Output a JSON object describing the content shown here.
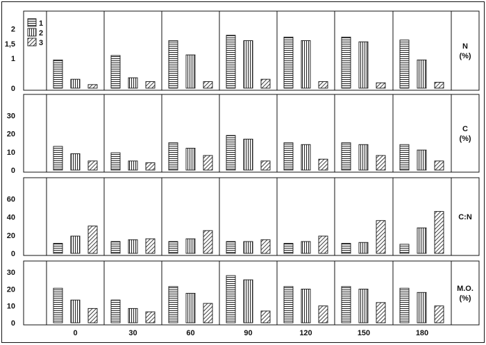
{
  "chart_data": {
    "type": "bar",
    "categories": [
      "0",
      "30",
      "60",
      "90",
      "120",
      "150",
      "180"
    ],
    "legend": [
      "1",
      "2",
      "3"
    ],
    "legend_placement": "top-left",
    "grid": false,
    "colors": {
      "ink": "#111111",
      "background": "#ffffff"
    },
    "patterns": [
      "horizontal-lines",
      "vertical-lines",
      "diagonal-lines"
    ],
    "panels": [
      {
        "label_lines": [
          "N",
          "(%)"
        ],
        "ylim": [
          0,
          2.5
        ],
        "yticks": [
          "0",
          "1",
          "1,5",
          "2"
        ],
        "ytick_values": [
          0,
          1,
          1.5,
          2
        ],
        "series": [
          {
            "name": "1",
            "values": [
              0.95,
              1.1,
              1.6,
              1.78,
              1.72,
              1.72,
              1.62
            ]
          },
          {
            "name": "2",
            "values": [
              0.3,
              0.35,
              1.12,
              1.6,
              1.6,
              1.56,
              0.95
            ]
          },
          {
            "name": "3",
            "values": [
              0.12,
              0.22,
              0.22,
              0.3,
              0.22,
              0.18,
              0.2
            ]
          }
        ]
      },
      {
        "label_lines": [
          "C",
          "(%)"
        ],
        "ylim": [
          0,
          40
        ],
        "yticks": [
          "0",
          "10",
          "20",
          "30"
        ],
        "ytick_values": [
          0,
          10,
          20,
          30
        ],
        "series": [
          {
            "name": "1",
            "values": [
              13,
              9.5,
              15,
              19,
              15,
              15,
              14
            ]
          },
          {
            "name": "2",
            "values": [
              9,
              5,
              12,
              17,
              14,
              14,
              11
            ]
          },
          {
            "name": "3",
            "values": [
              5,
              4,
              8,
              5,
              6,
              8,
              5
            ]
          }
        ]
      },
      {
        "label_lines": [
          "C:N"
        ],
        "ylim": [
          0,
          80
        ],
        "yticks": [
          "0",
          "20",
          "40",
          "60"
        ],
        "ytick_values": [
          0,
          20,
          40,
          60
        ],
        "series": [
          {
            "name": "1",
            "values": [
              11,
              13,
              13,
              13,
              11,
              11,
              10
            ]
          },
          {
            "name": "2",
            "values": [
              19,
              15,
              16,
              13,
              13,
              12,
              28
            ]
          },
          {
            "name": "3",
            "values": [
              30,
              16,
              25,
              15,
              19,
              36,
              46
            ]
          }
        ]
      },
      {
        "label_lines": [
          "M.O.",
          "(%)"
        ],
        "ylim": [
          0,
          35
        ],
        "yticks": [
          "0",
          "10",
          "20",
          "30"
        ],
        "ytick_values": [
          0,
          10,
          20,
          30
        ],
        "series": [
          {
            "name": "1",
            "values": [
              20.5,
              13.5,
              21.5,
              28,
              21.5,
              21.5,
              20.5
            ]
          },
          {
            "name": "2",
            "values": [
              13.5,
              8.5,
              17.5,
              25.5,
              20,
              20,
              18
            ]
          },
          {
            "name": "3",
            "values": [
              8.5,
              6.5,
              11.5,
              7,
              10,
              12,
              10
            ]
          }
        ]
      }
    ]
  }
}
